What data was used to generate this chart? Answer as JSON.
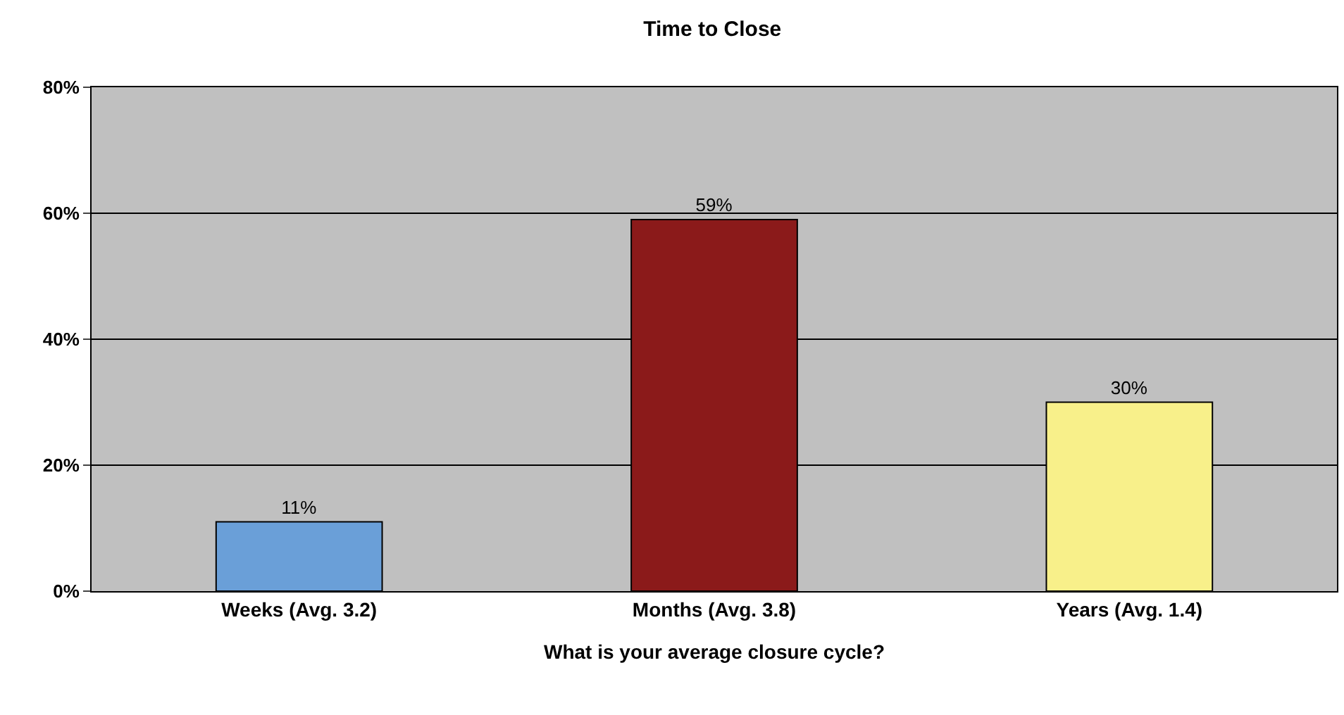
{
  "chart_data": {
    "type": "bar",
    "title": "Time to Close",
    "xlabel": "What is your average closure cycle?",
    "categories": [
      "Weeks (Avg. 3.2)",
      "Months (Avg. 3.8)",
      "Years (Avg. 1.4)"
    ],
    "values": [
      11,
      59,
      30
    ],
    "colors": [
      "#6a9fd8",
      "#8b1a1a",
      "#f8f08a"
    ],
    "value_labels": [
      "11%",
      "59%",
      "30%"
    ],
    "ylim": [
      0,
      80
    ],
    "yticks": [
      {
        "value": 0,
        "label": "0%"
      },
      {
        "value": 20,
        "label": "20%"
      },
      {
        "value": 40,
        "label": "40%"
      },
      {
        "value": 60,
        "label": "60%"
      },
      {
        "value": 80,
        "label": "80%"
      }
    ],
    "grid": "y",
    "legend": false
  }
}
